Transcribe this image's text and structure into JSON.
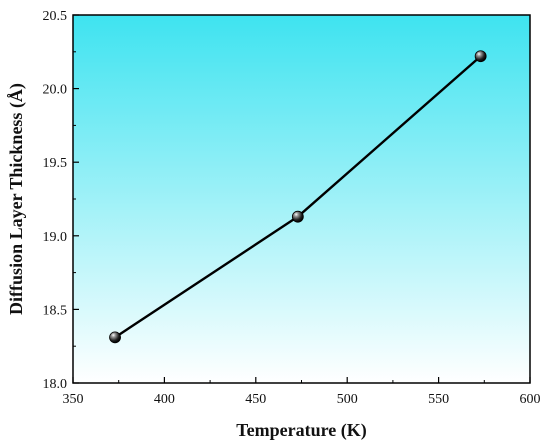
{
  "chart_data": {
    "type": "line",
    "title": "",
    "xlabel": "Temperature (K)",
    "ylabel": "Diffusion Layer Thickness (Å)",
    "xlim": [
      350,
      600
    ],
    "ylim": [
      18.0,
      20.5
    ],
    "xticks": [
      350,
      400,
      450,
      500,
      550,
      600
    ],
    "yticks": [
      18.0,
      18.5,
      19.0,
      19.5,
      20.0,
      20.5
    ],
    "xtick_labels": [
      "350",
      "400",
      "450",
      "500",
      "550",
      "600"
    ],
    "ytick_labels": [
      "18.0",
      "18.5",
      "19.0",
      "19.5",
      "20.0",
      "20.5"
    ],
    "series": [
      {
        "x": [
          373,
          473,
          573
        ],
        "y": [
          18.31,
          19.13,
          20.22
        ],
        "color": "#000000",
        "marker": "sphere"
      }
    ],
    "background_gradient": [
      "#3ee3f0",
      "#ffffff"
    ],
    "grid": false,
    "legend": "none"
  }
}
